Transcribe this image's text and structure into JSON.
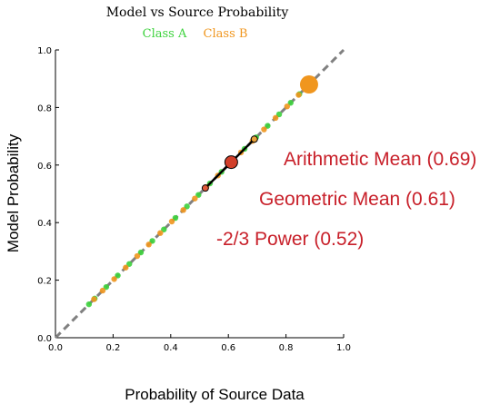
{
  "chart_data": {
    "type": "scatter",
    "title": "Model vs Source Probability",
    "xlabel": "Probability of Source Data",
    "ylabel": "Model Probability",
    "xlim": [
      0.0,
      1.0
    ],
    "ylim": [
      0.0,
      1.0
    ],
    "xticks": [
      "0.0",
      "0.2",
      "0.4",
      "0.6",
      "0.8",
      "1.0"
    ],
    "yticks": [
      "0.0",
      "0.2",
      "0.4",
      "0.6",
      "0.8",
      "1.0"
    ],
    "grid": false,
    "legend_position": "top",
    "reference_line": {
      "style": "dashed",
      "color": "#808080",
      "from": [
        0,
        0
      ],
      "to": [
        1,
        1
      ]
    },
    "series": [
      {
        "name": "Class A",
        "color": "#3cd23c",
        "x": [
          0.12,
          0.14,
          0.18,
          0.22,
          0.26,
          0.3,
          0.34,
          0.38,
          0.42,
          0.46,
          0.5,
          0.54,
          0.58,
          0.62,
          0.66,
          0.7,
          0.74,
          0.78,
          0.82,
          0.85,
          0.87
        ],
        "y": [
          0.12,
          0.14,
          0.18,
          0.22,
          0.26,
          0.3,
          0.34,
          0.38,
          0.42,
          0.46,
          0.5,
          0.54,
          0.58,
          0.62,
          0.66,
          0.7,
          0.74,
          0.78,
          0.82,
          0.85,
          0.87
        ]
      },
      {
        "name": "Class B",
        "color": "#f0961e",
        "x": [
          0.13,
          0.16,
          0.2,
          0.24,
          0.28,
          0.32,
          0.36,
          0.4,
          0.44,
          0.48,
          0.52,
          0.56,
          0.6,
          0.64,
          0.68,
          0.72,
          0.76,
          0.8,
          0.84,
          0.87,
          0.88
        ],
        "y": [
          0.13,
          0.16,
          0.2,
          0.24,
          0.28,
          0.32,
          0.36,
          0.4,
          0.44,
          0.48,
          0.52,
          0.56,
          0.6,
          0.64,
          0.68,
          0.72,
          0.76,
          0.8,
          0.84,
          0.87,
          0.88
        ]
      }
    ],
    "means": [
      {
        "label": "Arithmetic Mean (0.69)",
        "value": 0.69
      },
      {
        "label": "Geometric Mean (0.61)",
        "value": 0.61
      },
      {
        "label": "-2/3 Power (0.52)",
        "value": 0.52
      }
    ],
    "colors": {
      "annotation": "#c8202a",
      "mean_marker": "#d13f2a",
      "mean_line": "#000000",
      "large_marker": "#f0961e"
    }
  }
}
